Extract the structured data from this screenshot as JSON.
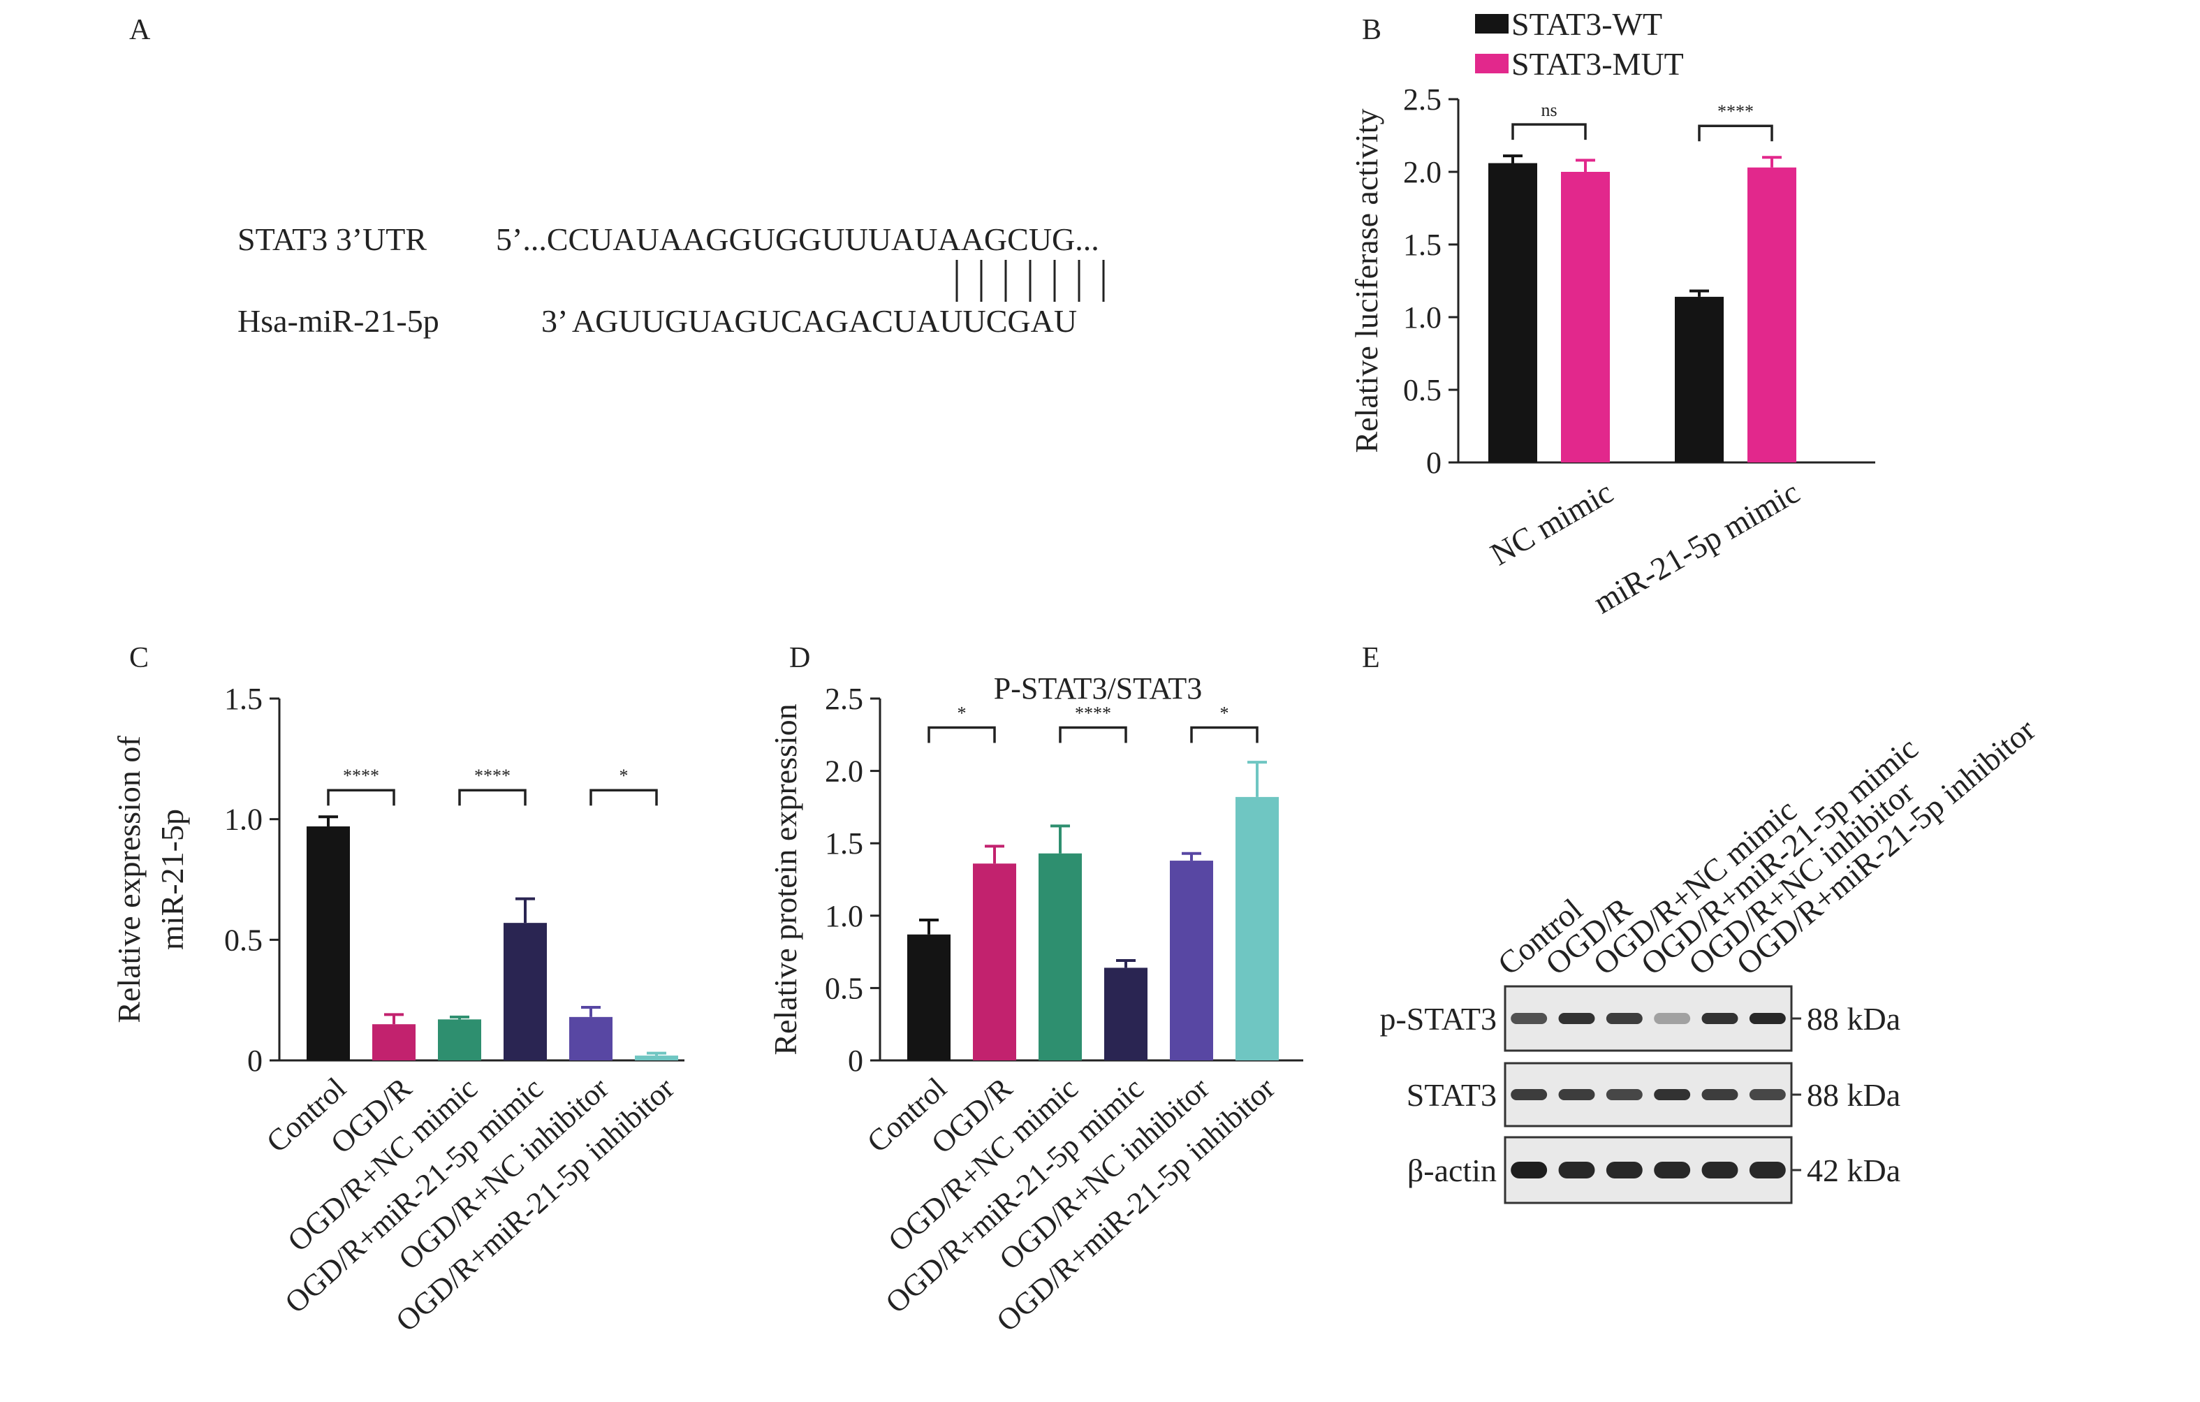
{
  "panel_a": {
    "letter": "A",
    "row1_label": "STAT3 3’UTR",
    "row1_seq": "5’...CCUAUAAGGUGGUUUAUAAGCUG...",
    "row2_label": "Hsa-miR-21-5p",
    "row2_seq": "3’ AGUUGUAGUCAGACUAUUCGAU",
    "pair_count": 7
  },
  "panel_e": {
    "letter": "E",
    "lanes": [
      "Control",
      "OGD/R",
      "OGD/R+NC mimic",
      "OGD/R+miR-21-5p mimic",
      "OGD/R+NC inhibitor",
      "OGD/R+miR-21-5p inhibitor"
    ],
    "blots": [
      {
        "protein": "p-STAT3",
        "size": "88 kDa",
        "intensity": [
          0.75,
          0.9,
          0.85,
          0.35,
          0.9,
          0.95
        ]
      },
      {
        "protein": "STAT3",
        "size": "88 kDa",
        "intensity": [
          0.85,
          0.85,
          0.8,
          0.9,
          0.85,
          0.8
        ]
      },
      {
        "protein": "β-actin",
        "size": "42 kDa",
        "intensity": [
          1.0,
          0.95,
          0.95,
          0.95,
          0.95,
          0.95
        ]
      }
    ]
  },
  "chart_data": [
    {
      "panel": "B",
      "type": "bar",
      "title": "",
      "xlabel": "",
      "ylabel": "Relative luciferase activity",
      "ylim": [
        0,
        2.5
      ],
      "yticks": [
        "0",
        "0.5",
        "1.0",
        "1.5",
        "2.0",
        "2.5"
      ],
      "categories": [
        "NC mimic",
        "miR-21-5p mimic"
      ],
      "series": [
        {
          "name": "STAT3-WT",
          "color": "#141414",
          "values": [
            2.06,
            1.14
          ],
          "errors": [
            0.05,
            0.04
          ]
        },
        {
          "name": "STAT3-MUT",
          "color": "#e2288c",
          "values": [
            2.0,
            2.03
          ],
          "errors": [
            0.08,
            0.07
          ]
        }
      ],
      "legend": "top-left",
      "significance": [
        {
          "group": 0,
          "label": "ns"
        },
        {
          "group": 1,
          "label": "****"
        }
      ]
    },
    {
      "panel": "C",
      "type": "bar",
      "title": "",
      "xlabel": "",
      "ylabel": "Relative expression of miR-21-5p",
      "ylabel_lines": [
        "Relative expression of",
        "miR-21-5p"
      ],
      "ylim": [
        0,
        1.5
      ],
      "yticks": [
        "0",
        "0.5",
        "1.0",
        "1.5"
      ],
      "categories": [
        "Control",
        "OGD/R",
        "OGD/R+NC mimic",
        "OGD/R+miR-21-5p mimic",
        "OGD/R+NC inhibitor",
        "OGD/R+miR-21-5p inhibitor"
      ],
      "values": [
        0.97,
        0.15,
        0.17,
        0.57,
        0.18,
        0.02
      ],
      "errors": [
        0.04,
        0.04,
        0.01,
        0.1,
        0.04,
        0.01
      ],
      "colors": [
        "#141414",
        "#c2226e",
        "#2e8f6f",
        "#2a2552",
        "#5847a3",
        "#6fc6c2"
      ],
      "significance": [
        {
          "from": 0,
          "to": 1,
          "label": "****"
        },
        {
          "from": 2,
          "to": 3,
          "label": "****"
        },
        {
          "from": 4,
          "to": 5,
          "label": "*"
        }
      ]
    },
    {
      "panel": "D",
      "type": "bar",
      "title": "P-STAT3/STAT3",
      "xlabel": "",
      "ylabel": "Relative protein expression",
      "ylim": [
        0,
        2.5
      ],
      "yticks": [
        "0",
        "0.5",
        "1.0",
        "1.5",
        "2.0",
        "2.5"
      ],
      "categories": [
        "Control",
        "OGD/R",
        "OGD/R+NC mimic",
        "OGD/R+miR-21-5p mimic",
        "OGD/R+NC inhibitor",
        "OGD/R+miR-21-5p inhibitor"
      ],
      "values": [
        0.87,
        1.36,
        1.43,
        0.64,
        1.38,
        1.82
      ],
      "errors": [
        0.1,
        0.12,
        0.19,
        0.05,
        0.05,
        0.24
      ],
      "colors": [
        "#141414",
        "#c2226e",
        "#2e8f6f",
        "#2a2552",
        "#5847a3",
        "#6fc6c2"
      ],
      "significance": [
        {
          "from": 0,
          "to": 1,
          "label": "*"
        },
        {
          "from": 2,
          "to": 3,
          "label": "****"
        },
        {
          "from": 4,
          "to": 5,
          "label": "*"
        }
      ]
    }
  ]
}
